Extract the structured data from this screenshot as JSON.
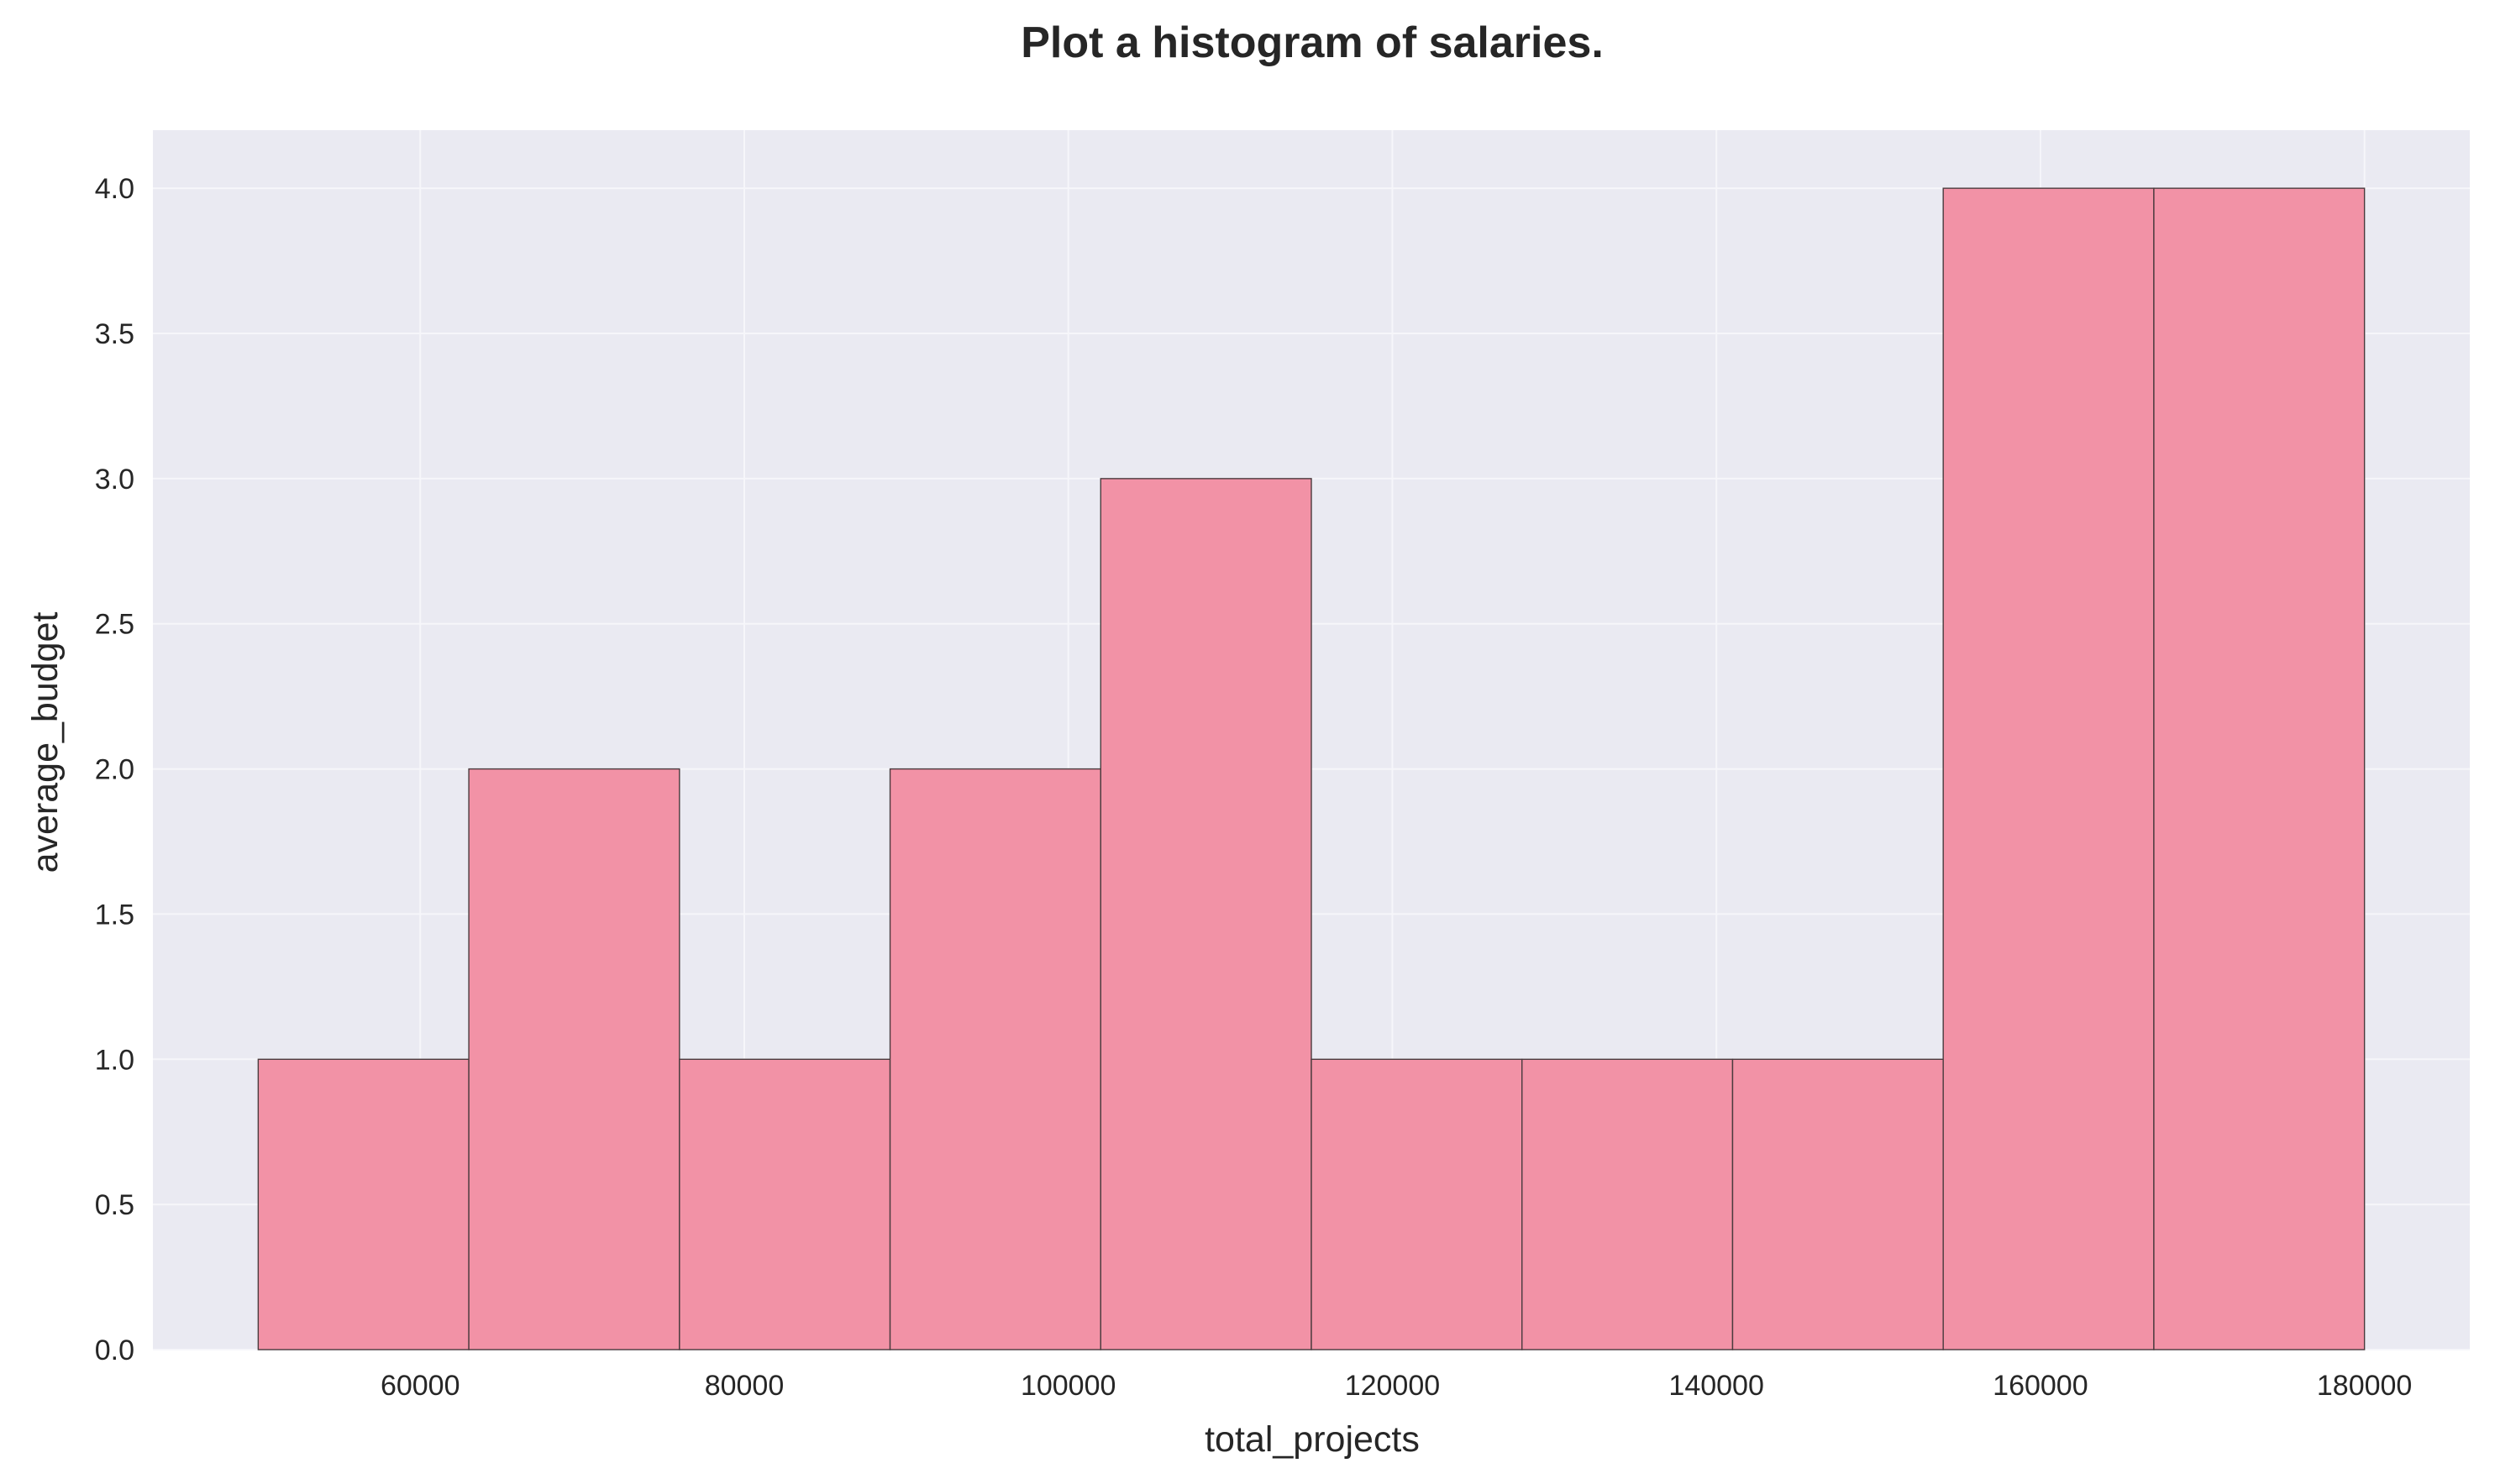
{
  "chart_data": {
    "type": "bar",
    "title": "Plot a histogram of salaries.",
    "xlabel": "total_projects",
    "ylabel": "average_budget",
    "bin_edges": [
      50000,
      63000,
      76000,
      89000,
      102000,
      115000,
      128000,
      141000,
      154000,
      167000,
      180000
    ],
    "values": [
      1,
      2,
      1,
      2,
      3,
      1,
      1,
      1,
      4,
      4
    ],
    "xlim": [
      43500,
      186500
    ],
    "ylim": [
      0,
      4.2
    ],
    "xticks": [
      60000,
      80000,
      100000,
      120000,
      140000,
      160000,
      180000
    ],
    "xtick_labels": [
      "60000",
      "80000",
      "100000",
      "120000",
      "140000",
      "160000",
      "180000"
    ],
    "yticks": [
      0,
      0.5,
      1,
      1.5,
      2,
      2.5,
      3,
      3.5,
      4
    ],
    "ytick_labels": [
      "0.0",
      "0.5",
      "1.0",
      "1.5",
      "2.0",
      "2.5",
      "3.0",
      "3.5",
      "4.0"
    ],
    "grid": true,
    "colors": {
      "bar_fill": "#f292a6",
      "bar_edge": "#4a3b3e",
      "plot_background": "#eaeaf2",
      "grid": "#f6f6fa"
    }
  }
}
